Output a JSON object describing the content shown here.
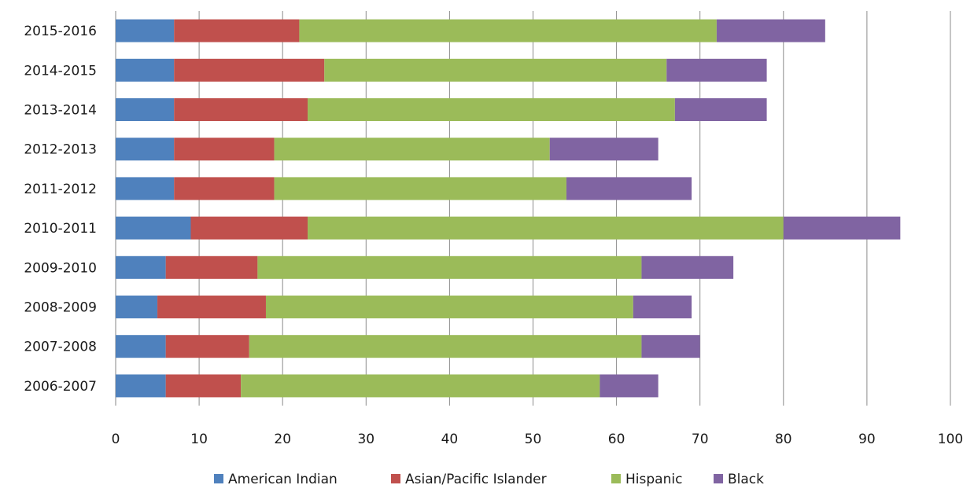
{
  "chart_data": {
    "type": "bar",
    "orientation": "horizontal",
    "stacked": true,
    "categories": [
      "2006-2007",
      "2007-2008",
      "2008-2009",
      "2009-2010",
      "2010-2011",
      "2011-2012",
      "2012-2013",
      "2013-2014",
      "2014-2015",
      "2015-2016"
    ],
    "series": [
      {
        "name": "American Indian",
        "color": "#4f81bd",
        "values": [
          6,
          6,
          5,
          6,
          9,
          7,
          7,
          7,
          7,
          7
        ]
      },
      {
        "name": "Asian/Pacific Islander",
        "color": "#c0504d",
        "values": [
          9,
          10,
          13,
          11,
          14,
          12,
          12,
          16,
          18,
          15
        ]
      },
      {
        "name": "Hispanic",
        "color": "#9bbb59",
        "values": [
          43,
          47,
          44,
          46,
          57,
          35,
          33,
          44,
          41,
          50
        ]
      },
      {
        "name": "Black",
        "color": "#8064a2",
        "values": [
          7,
          7,
          7,
          11,
          14,
          15,
          13,
          11,
          12,
          13
        ]
      }
    ],
    "xlim": [
      0,
      100
    ],
    "xticks": [
      "0",
      "10",
      "20",
      "30",
      "40",
      "50",
      "60",
      "70",
      "80",
      "90",
      "100"
    ],
    "grid": "vertical",
    "legend_position": "bottom",
    "title": "",
    "xlabel": "",
    "ylabel": ""
  }
}
